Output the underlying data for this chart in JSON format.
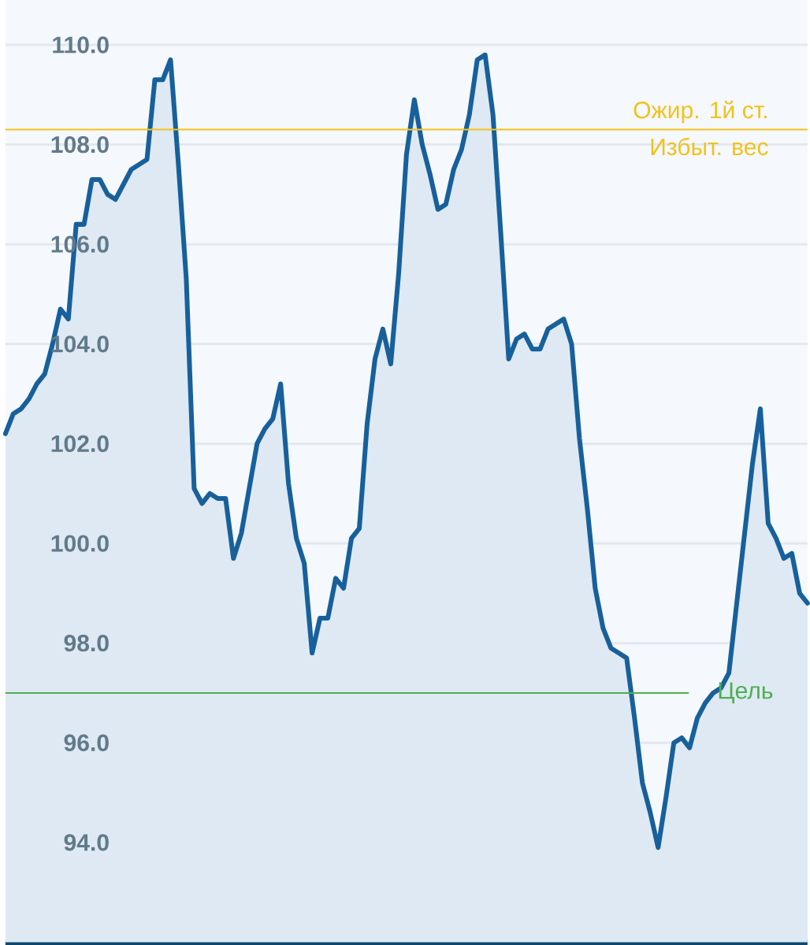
{
  "chart_data": {
    "type": "area",
    "color": "#17609b",
    "categories": [
      null,
      null,
      null,
      null,
      null,
      null,
      null,
      null,
      null,
      null,
      null,
      null,
      null,
      null,
      null,
      null,
      null,
      null,
      null,
      null,
      null,
      null,
      null,
      null,
      null,
      null,
      null,
      null,
      null,
      null,
      null,
      null,
      null,
      null,
      null,
      null,
      null,
      null,
      null,
      null,
      null,
      null,
      null,
      null,
      null,
      null,
      null,
      null,
      null,
      null,
      null,
      null,
      null,
      null,
      null,
      null,
      null,
      null,
      null,
      null,
      null,
      null,
      null,
      null,
      null,
      null,
      null,
      null,
      null,
      null,
      null,
      null,
      null,
      null,
      null,
      null,
      null,
      null,
      null,
      null,
      null,
      null,
      null,
      null,
      null,
      null,
      null,
      null,
      null,
      null,
      null,
      null,
      null,
      null,
      null,
      null,
      null,
      null,
      null,
      null,
      null,
      null,
      null
    ],
    "values": [
      102.2,
      102.6,
      102.7,
      102.9,
      103.2,
      103.4,
      104.0,
      104.7,
      104.5,
      106.4,
      106.4,
      107.3,
      107.3,
      107.0,
      106.9,
      107.2,
      107.5,
      107.6,
      107.7,
      109.3,
      109.3,
      109.7,
      107.6,
      105.3,
      101.1,
      100.8,
      101.0,
      100.9,
      100.9,
      99.7,
      100.2,
      101.1,
      102.0,
      102.3,
      102.5,
      103.2,
      101.2,
      100.1,
      99.6,
      97.8,
      98.5,
      98.5,
      99.3,
      99.1,
      100.1,
      100.3,
      102.4,
      103.7,
      104.3,
      103.6,
      105.4,
      107.8,
      108.9,
      108.0,
      107.4,
      106.7,
      106.8,
      107.5,
      107.9,
      108.6,
      109.7,
      109.8,
      108.6,
      106.2,
      103.7,
      104.1,
      104.2,
      103.9,
      103.9,
      104.3,
      104.4,
      104.5,
      104.0,
      102.1,
      100.7,
      99.1,
      98.3,
      97.9,
      97.8,
      97.7,
      96.5,
      95.2,
      94.6,
      93.9,
      94.9,
      96.0,
      96.1,
      95.9,
      96.5,
      96.8,
      97.0,
      97.1,
      97.4,
      98.8,
      100.2,
      101.6,
      102.7,
      100.4,
      100.1,
      99.7,
      99.8,
      99.0,
      98.8
    ],
    "ylim": [
      92,
      110.9
    ],
    "yticks": [
      {
        "value": 92,
        "label": null
      },
      {
        "value": 94,
        "label": "94.0"
      },
      {
        "value": 96,
        "label": "96.0"
      },
      {
        "value": 98,
        "label": "98.0"
      },
      {
        "value": 100,
        "label": "100.0"
      },
      {
        "value": 102,
        "label": "102.0"
      },
      {
        "value": 104,
        "label": "104.0"
      },
      {
        "value": 106,
        "label": "106.0"
      },
      {
        "value": 108,
        "label": "108.0"
      },
      {
        "value": 110,
        "label": "110.0"
      }
    ],
    "grid": "y",
    "ref_lines": [
      {
        "axis": "y",
        "value": 108.3,
        "label": "Ожир. 1й ст.",
        "color": "#f2c21b"
      },
      {
        "axis": "y",
        "value": 97.0,
        "label": "Цель",
        "color": "#4caf50"
      }
    ],
    "annotations": [
      {
        "text": "Избыт. вес",
        "y": 108.3
      }
    ]
  }
}
